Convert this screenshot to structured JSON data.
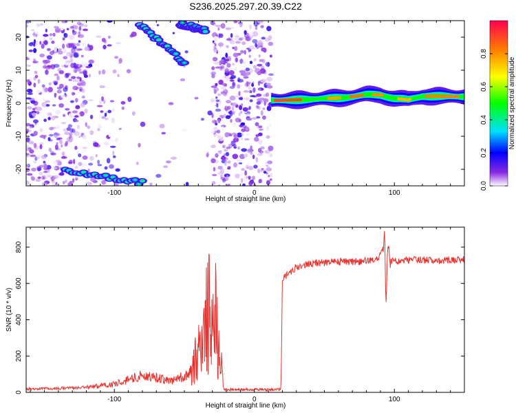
{
  "title": "S236.2025.297.20.39.C22",
  "chart_data": [
    {
      "type": "heatmap",
      "title": "S236.2025.297.20.39.C22",
      "xlabel": "Height of straight line (km)",
      "ylabel": "Frequency (Hz)",
      "xlim": [
        -163,
        150
      ],
      "ylim": [
        -25,
        25
      ],
      "x_ticks": [
        -100,
        0,
        100
      ],
      "y_ticks": [
        -20,
        -10,
        0,
        10,
        20
      ],
      "x_tick_labels": [
        "-100",
        "0",
        "100"
      ],
      "y_tick_labels": [
        "-20",
        "-10",
        "0",
        "10",
        "20"
      ],
      "colorbar": {
        "label": "Normalized spectral amplitude",
        "range": [
          0,
          1
        ],
        "ticks": [
          0.0,
          0.2,
          0.4,
          0.6,
          0.8
        ],
        "tick_labels": [
          "0.0",
          "0.2",
          "0.4",
          "0.6",
          "0.8"
        ]
      },
      "signal_band": {
        "start_km": 12,
        "center_hz": [
          [
            12,
            0.8
          ],
          [
            40,
            1.2
          ],
          [
            60,
            1.6
          ],
          [
            80,
            2.5
          ],
          [
            90,
            2.6
          ],
          [
            100,
            1.5
          ],
          [
            110,
            1.0
          ],
          [
            120,
            2.2
          ],
          [
            150,
            2.0
          ]
        ]
      },
      "streaks": [
        {
          "x": [
            -82,
            -50
          ],
          "y": [
            24,
            12
          ]
        },
        {
          "x": [
            -53,
            -35
          ],
          "y": [
            24,
            22
          ]
        },
        {
          "x": [
            -135,
            -80
          ],
          "y": [
            -20,
            -24
          ]
        }
      ]
    },
    {
      "type": "line",
      "xlabel": "Height of straight line (km)",
      "ylabel": "SNR (10 * v/v)",
      "xlim": [
        -163,
        150
      ],
      "ylim": [
        0,
        910
      ],
      "x_ticks": [
        -100,
        0,
        100
      ],
      "y_ticks": [
        0,
        200,
        400,
        600,
        800
      ],
      "x_tick_labels": [
        "-100",
        "0",
        "100"
      ],
      "y_tick_labels": [
        "0",
        "200",
        "400",
        "600",
        "800"
      ],
      "color": "#e8322e",
      "series": [
        {
          "name": "SNR",
          "x": [
            -163,
            -140,
            -120,
            -100,
            -90,
            -80,
            -70,
            -60,
            -50,
            -45,
            -40,
            -35,
            -32,
            -30,
            -27,
            -25,
            -22,
            -20,
            -10,
            0,
            10,
            19,
            20,
            22,
            25,
            30,
            35,
            40,
            50,
            60,
            70,
            80,
            85,
            88,
            90,
            92,
            93,
            94,
            95,
            96,
            97,
            98,
            100,
            110,
            120,
            130,
            140,
            150
          ],
          "y": [
            18,
            22,
            28,
            45,
            70,
            90,
            80,
            60,
            90,
            130,
            200,
            380,
            480,
            300,
            450,
            250,
            20,
            15,
            15,
            15,
            15,
            15,
            620,
            640,
            660,
            690,
            700,
            710,
            715,
            720,
            720,
            725,
            730,
            740,
            760,
            790,
            900,
            460,
            760,
            820,
            700,
            730,
            720,
            730,
            730,
            725,
            730,
            730
          ]
        }
      ]
    }
  ]
}
